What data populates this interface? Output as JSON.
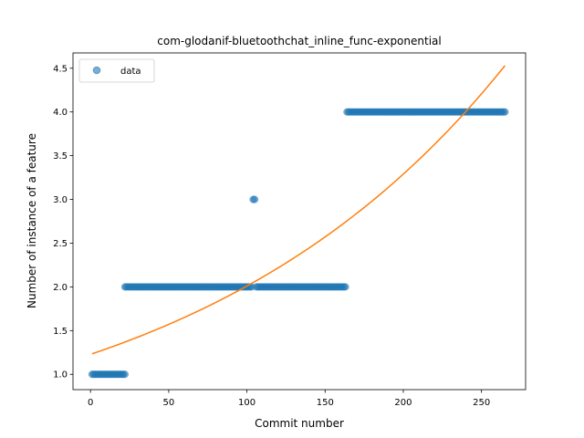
{
  "chart_data": {
    "type": "scatter",
    "title": "com-glodanif-bluetoothchat_inline_func-exponential",
    "xlabel": "Commit number",
    "ylabel": "Number of instance of a feature",
    "xlim": [
      -11.2,
      278.2
    ],
    "ylim": [
      0.825,
      4.675
    ],
    "xticks": [
      0,
      50,
      100,
      150,
      200,
      250
    ],
    "yticks": [
      1.0,
      1.5,
      2.0,
      2.5,
      3.0,
      3.5,
      4.0,
      4.5
    ],
    "xtick_labels": [
      "0",
      "50",
      "100",
      "150",
      "200",
      "250"
    ],
    "ytick_labels": [
      "1.0",
      "1.5",
      "2.0",
      "2.5",
      "3.0",
      "3.5",
      "4.0",
      "4.5"
    ],
    "legend": {
      "placement": "top-left",
      "entries": [
        "data"
      ]
    },
    "grid": false,
    "series": [
      {
        "name": "data",
        "kind": "scatter",
        "color": "#1f77b4",
        "segments": [
          {
            "x_start": 1,
            "x_end": 22,
            "y": 1.0
          },
          {
            "x_start": 22,
            "x_end": 103,
            "y": 2.0
          },
          {
            "x_start": 104,
            "x_end": 105,
            "y": 3.0
          },
          {
            "x_start": 106,
            "x_end": 163,
            "y": 2.0
          },
          {
            "x_start": 164,
            "x_end": 265,
            "y": 4.0
          }
        ]
      },
      {
        "kind": "line",
        "color": "#ff7f0e",
        "model": "exponential",
        "a": 1.2283,
        "b": 0.004925,
        "x_range": [
          1,
          265
        ]
      }
    ]
  }
}
